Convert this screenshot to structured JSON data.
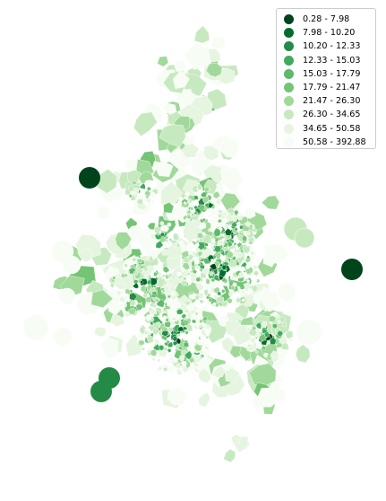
{
  "map": {
    "legend": {
      "items": [
        {
          "label": "0.28 - 7.98",
          "color": "#00441b"
        },
        {
          "label": "7.98 - 10.20",
          "color": "#006d2c"
        },
        {
          "label": "10.20 - 12.33",
          "color": "#238b45"
        },
        {
          "label": "12.33 - 15.03",
          "color": "#41ab5d"
        },
        {
          "label": "15.03 - 17.79",
          "color": "#5db96b"
        },
        {
          "label": "17.79 - 21.47",
          "color": "#74c476"
        },
        {
          "label": "21.47 - 26.30",
          "color": "#a1d99b"
        },
        {
          "label": "26.30 - 34.65",
          "color": "#c7e9c0"
        },
        {
          "label": "34.65 - 50.58",
          "color": "#e5f5e0"
        },
        {
          "label": "50.58 - 392.88",
          "color": "#f7fcf5"
        }
      ]
    }
  }
}
